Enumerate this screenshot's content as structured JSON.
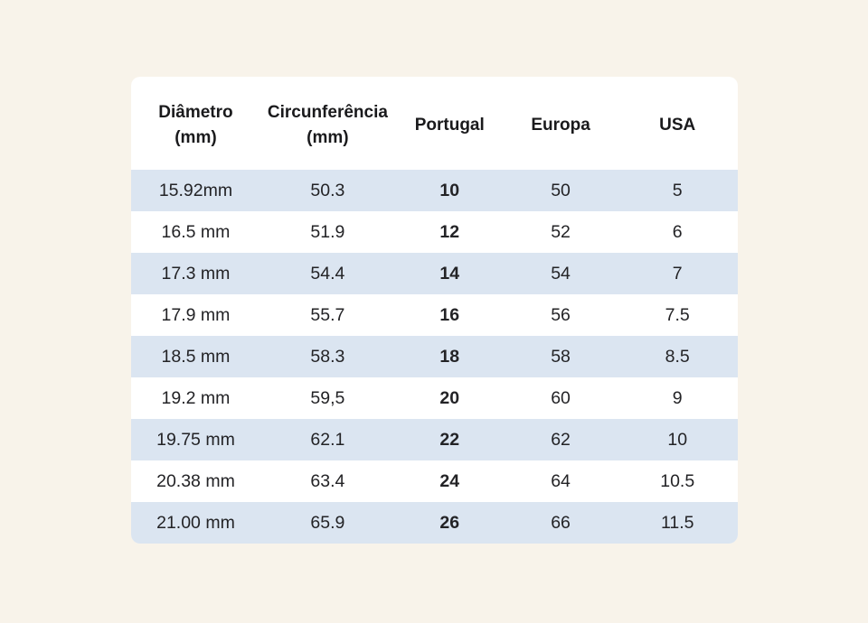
{
  "chart_data": {
    "type": "table",
    "columns": [
      {
        "label": "Diâmetro",
        "sublabel": "(mm)"
      },
      {
        "label": "Circunferência",
        "sublabel": "(mm)"
      },
      {
        "label": "Portugal",
        "sublabel": ""
      },
      {
        "label": "Europa",
        "sublabel": ""
      },
      {
        "label": "USA",
        "sublabel": ""
      }
    ],
    "rows": [
      [
        "15.92mm",
        "50.3",
        "10",
        "50",
        "5"
      ],
      [
        "16.5 mm",
        "51.9",
        "12",
        "52",
        "6"
      ],
      [
        "17.3 mm",
        "54.4",
        "14",
        "54",
        "7"
      ],
      [
        "17.9 mm",
        "55.7",
        "16",
        "56",
        "7.5"
      ],
      [
        "18.5 mm",
        "58.3",
        "18",
        "58",
        "8.5"
      ],
      [
        "19.2 mm",
        "59,5",
        "20",
        "60",
        "9"
      ],
      [
        "19.75 mm",
        "62.1",
        "22",
        "62",
        "10"
      ],
      [
        "20.38 mm",
        "63.4",
        "24",
        "64",
        "10.5"
      ],
      [
        "21.00 mm",
        "65.9",
        "26",
        "66",
        "11.5"
      ]
    ],
    "bold_column_index": 2,
    "layout": {
      "stripe_pattern": "odd-rows-blue",
      "alignment": "center"
    },
    "colors": {
      "page_background": "#f8f3ea",
      "card_background": "#ffffff",
      "row_stripe": "#dbe5f1",
      "text": "#232326"
    }
  }
}
